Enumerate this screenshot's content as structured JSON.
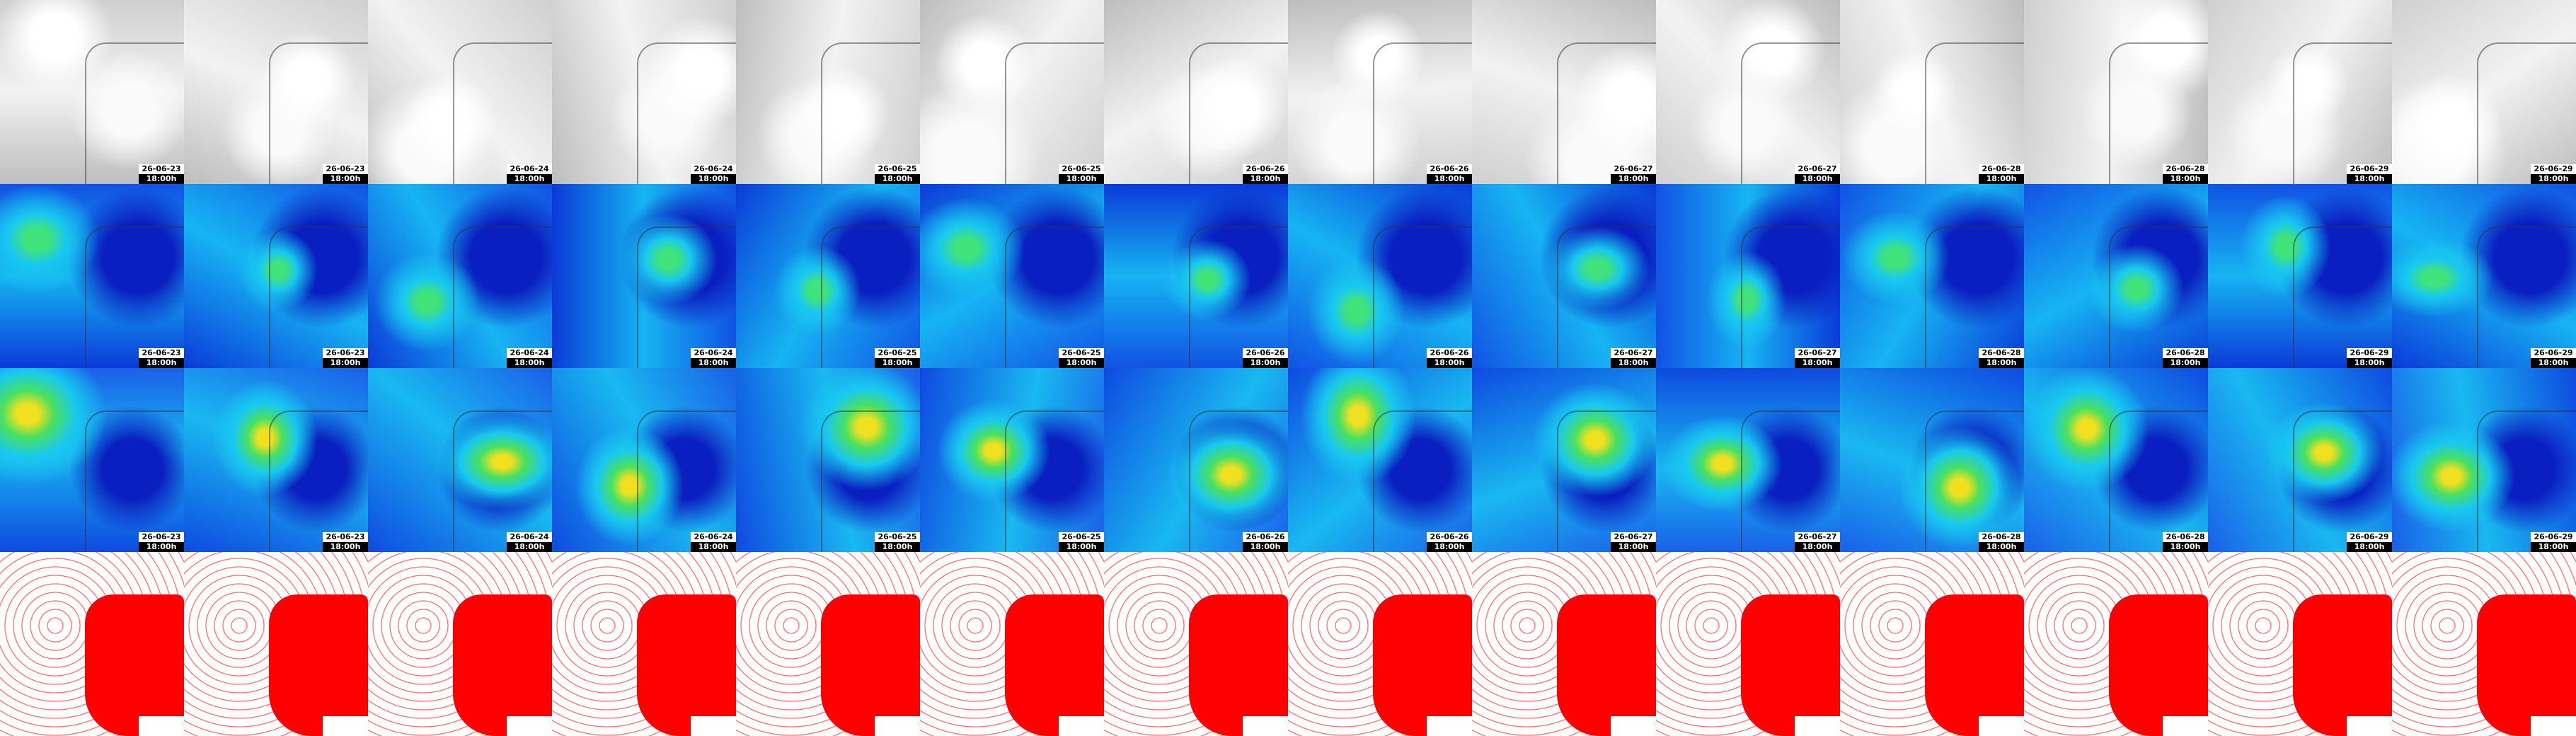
{
  "rows": [
    [
      {
        "date": "26-06-23",
        "time": "18:00h"
      },
      {
        "date": "26-06-23",
        "time": "18:00h"
      },
      {
        "date": "26-06-24",
        "time": "18:00h"
      },
      {
        "date": "26-06-24",
        "time": "18:00h"
      },
      {
        "date": "26-06-25",
        "time": "18:00h"
      },
      {
        "date": "26-06-25",
        "time": "18:00h"
      },
      {
        "date": "26-06-26",
        "time": "18:00h"
      },
      {
        "date": "26-06-26",
        "time": "18:00h"
      },
      {
        "date": "26-06-27",
        "time": "18:00h"
      },
      {
        "date": "26-06-27",
        "time": "18:00h"
      },
      {
        "date": "26-06-28",
        "time": "18:00h"
      },
      {
        "date": "26-06-28",
        "time": "18:00h"
      },
      {
        "date": "26-06-29",
        "time": "18:00h"
      },
      {
        "date": "26-06-29",
        "time": "18:00h"
      }
    ],
    [
      {
        "date": "26-06-23",
        "time": "18:00h"
      },
      {
        "date": "26-06-23",
        "time": "18:00h"
      },
      {
        "date": "26-06-24",
        "time": "18:00h"
      },
      {
        "date": "26-06-24",
        "time": "18:00h"
      },
      {
        "date": "26-06-25",
        "time": "18:00h"
      },
      {
        "date": "26-06-25",
        "time": "18:00h"
      },
      {
        "date": "26-06-26",
        "time": "18:00h"
      },
      {
        "date": "26-06-26",
        "time": "18:00h"
      },
      {
        "date": "26-06-27",
        "time": "18:00h"
      },
      {
        "date": "26-06-27",
        "time": "18:00h"
      },
      {
        "date": "26-06-28",
        "time": "18:00h"
      },
      {
        "date": "26-06-28",
        "time": "18:00h"
      },
      {
        "date": "26-06-29",
        "time": "18:00h"
      },
      {
        "date": "26-06-29",
        "time": "18:00h"
      }
    ],
    [
      {
        "date": "26-06-23",
        "time": "18:00h"
      },
      {
        "date": "26-06-23",
        "time": "18:00h"
      },
      {
        "date": "26-06-24",
        "time": "18:00h"
      },
      {
        "date": "26-06-24",
        "time": "18:00h"
      },
      {
        "date": "26-06-25",
        "time": "18:00h"
      },
      {
        "date": "26-06-25",
        "time": "18:00h"
      },
      {
        "date": "26-06-26",
        "time": "18:00h"
      },
      {
        "date": "26-06-26",
        "time": "18:00h"
      },
      {
        "date": "26-06-27",
        "time": "18:00h"
      },
      {
        "date": "26-06-27",
        "time": "18:00h"
      },
      {
        "date": "26-06-28",
        "time": "18:00h"
      },
      {
        "date": "26-06-28",
        "time": "18:00h"
      },
      {
        "date": "26-06-29",
        "time": "18:00h"
      },
      {
        "date": "26-06-29",
        "time": "18:00h"
      }
    ]
  ]
}
